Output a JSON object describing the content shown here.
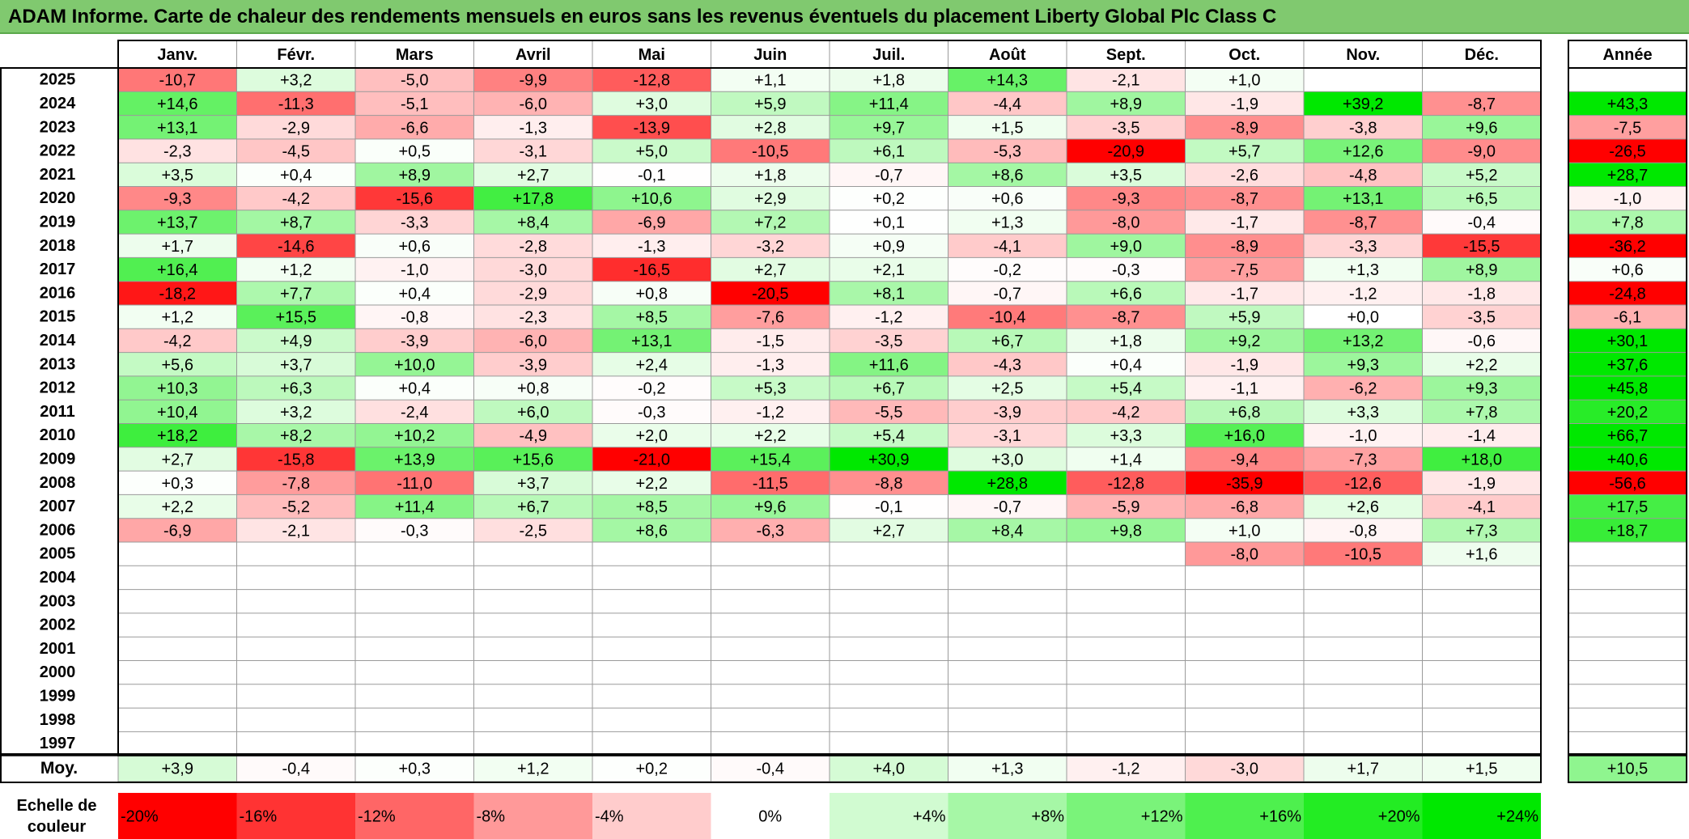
{
  "title": "ADAM Informe. Carte de chaleur des rendements mensuels en euros sans les revenus éventuels du placement Liberty Global Plc Class C",
  "chart_data": {
    "type": "heatmap",
    "months": [
      "Janv.",
      "Févr.",
      "Mars",
      "Avril",
      "Mai",
      "Juin",
      "Juil.",
      "Août",
      "Sept.",
      "Oct.",
      "Nov.",
      "Déc."
    ],
    "year_column_label": "Année",
    "rows": [
      {
        "year": "2025",
        "values": [
          -10.7,
          3.2,
          -5.0,
          -9.9,
          -12.8,
          1.1,
          1.8,
          14.3,
          -2.1,
          1.0,
          null,
          null
        ],
        "annual": null
      },
      {
        "year": "2024",
        "values": [
          14.6,
          -11.3,
          -5.1,
          -6.0,
          3.0,
          5.9,
          11.4,
          -4.4,
          8.9,
          -1.9,
          39.2,
          -8.7
        ],
        "annual": 43.3
      },
      {
        "year": "2023",
        "values": [
          13.1,
          -2.9,
          -6.6,
          -1.3,
          -13.9,
          2.8,
          9.7,
          1.5,
          -3.5,
          -8.9,
          -3.8,
          9.6
        ],
        "annual": -7.5
      },
      {
        "year": "2022",
        "values": [
          -2.3,
          -4.5,
          0.5,
          -3.1,
          5.0,
          -10.5,
          6.1,
          -5.3,
          -20.9,
          5.7,
          12.6,
          -9.0
        ],
        "annual": -26.5
      },
      {
        "year": "2021",
        "values": [
          3.5,
          0.4,
          8.9,
          2.7,
          -0.1,
          1.8,
          -0.7,
          8.6,
          3.5,
          -2.6,
          -4.8,
          5.2
        ],
        "annual": 28.7
      },
      {
        "year": "2020",
        "values": [
          -9.3,
          -4.2,
          -15.6,
          17.8,
          10.6,
          2.9,
          0.2,
          0.6,
          -9.3,
          -8.7,
          13.1,
          6.5
        ],
        "annual": -1.0
      },
      {
        "year": "2019",
        "values": [
          13.7,
          8.7,
          -3.3,
          8.4,
          -6.9,
          7.2,
          0.1,
          1.3,
          -8.0,
          -1.7,
          -8.7,
          -0.4
        ],
        "annual": 7.8
      },
      {
        "year": "2018",
        "values": [
          1.7,
          -14.6,
          0.6,
          -2.8,
          -1.3,
          -3.2,
          0.9,
          -4.1,
          9.0,
          -8.9,
          -3.3,
          -15.5
        ],
        "annual": -36.2
      },
      {
        "year": "2017",
        "values": [
          16.4,
          1.2,
          -1.0,
          -3.0,
          -16.5,
          2.7,
          2.1,
          -0.2,
          -0.3,
          -7.5,
          1.3,
          8.9
        ],
        "annual": 0.6
      },
      {
        "year": "2016",
        "values": [
          -18.2,
          7.7,
          0.4,
          -2.9,
          0.8,
          -20.5,
          8.1,
          -0.7,
          6.6,
          -1.7,
          -1.2,
          -1.8
        ],
        "annual": -24.8
      },
      {
        "year": "2015",
        "values": [
          1.2,
          15.5,
          -0.8,
          -2.3,
          8.5,
          -7.6,
          -1.2,
          -10.4,
          -8.7,
          5.9,
          0.0,
          -3.5
        ],
        "annual": -6.1
      },
      {
        "year": "2014",
        "values": [
          -4.2,
          4.9,
          -3.9,
          -6.0,
          13.1,
          -1.5,
          -3.5,
          6.7,
          1.8,
          9.2,
          13.2,
          -0.6
        ],
        "annual": 30.1
      },
      {
        "year": "2013",
        "values": [
          5.6,
          3.7,
          10.0,
          -3.9,
          2.4,
          -1.3,
          11.6,
          -4.3,
          0.4,
          -1.9,
          9.3,
          2.2
        ],
        "annual": 37.6
      },
      {
        "year": "2012",
        "values": [
          10.3,
          6.3,
          0.4,
          0.8,
          -0.2,
          5.3,
          6.7,
          2.5,
          5.4,
          -1.1,
          -6.2,
          9.3
        ],
        "annual": 45.8
      },
      {
        "year": "2011",
        "values": [
          10.4,
          3.2,
          -2.4,
          6.0,
          -0.3,
          -1.2,
          -5.5,
          -3.9,
          -4.2,
          6.8,
          3.3,
          7.8
        ],
        "annual": 20.2
      },
      {
        "year": "2010",
        "values": [
          18.2,
          8.2,
          10.2,
          -4.9,
          2.0,
          2.2,
          5.4,
          -3.1,
          3.3,
          16.0,
          -1.0,
          -1.4
        ],
        "annual": 66.7
      },
      {
        "year": "2009",
        "values": [
          2.7,
          -15.8,
          13.9,
          15.6,
          -21.0,
          15.4,
          30.9,
          3.0,
          1.4,
          -9.4,
          -7.3,
          18.0
        ],
        "annual": 40.6
      },
      {
        "year": "2008",
        "values": [
          0.3,
          -7.8,
          -11.0,
          3.7,
          2.2,
          -11.5,
          -8.8,
          28.8,
          -12.8,
          -35.9,
          -12.6,
          -1.9
        ],
        "annual": -56.6
      },
      {
        "year": "2007",
        "values": [
          2.2,
          -5.2,
          11.4,
          6.7,
          8.5,
          9.6,
          -0.1,
          -0.7,
          -5.9,
          -6.8,
          2.6,
          -4.1
        ],
        "annual": 17.5
      },
      {
        "year": "2006",
        "values": [
          -6.9,
          -2.1,
          -0.3,
          -2.5,
          8.6,
          -6.3,
          2.7,
          8.4,
          9.8,
          1.0,
          -0.8,
          7.3
        ],
        "annual": 18.7
      },
      {
        "year": "2005",
        "values": [
          null,
          null,
          null,
          null,
          null,
          null,
          null,
          null,
          null,
          -8.0,
          -10.5,
          1.6
        ],
        "annual": null
      },
      {
        "year": "2004",
        "values": [
          null,
          null,
          null,
          null,
          null,
          null,
          null,
          null,
          null,
          null,
          null,
          null
        ],
        "annual": null
      },
      {
        "year": "2003",
        "values": [
          null,
          null,
          null,
          null,
          null,
          null,
          null,
          null,
          null,
          null,
          null,
          null
        ],
        "annual": null
      },
      {
        "year": "2002",
        "values": [
          null,
          null,
          null,
          null,
          null,
          null,
          null,
          null,
          null,
          null,
          null,
          null
        ],
        "annual": null
      },
      {
        "year": "2001",
        "values": [
          null,
          null,
          null,
          null,
          null,
          null,
          null,
          null,
          null,
          null,
          null,
          null
        ],
        "annual": null
      },
      {
        "year": "2000",
        "values": [
          null,
          null,
          null,
          null,
          null,
          null,
          null,
          null,
          null,
          null,
          null,
          null
        ],
        "annual": null
      },
      {
        "year": "1999",
        "values": [
          null,
          null,
          null,
          null,
          null,
          null,
          null,
          null,
          null,
          null,
          null,
          null
        ],
        "annual": null
      },
      {
        "year": "1998",
        "values": [
          null,
          null,
          null,
          null,
          null,
          null,
          null,
          null,
          null,
          null,
          null,
          null
        ],
        "annual": null
      },
      {
        "year": "1997",
        "values": [
          null,
          null,
          null,
          null,
          null,
          null,
          null,
          null,
          null,
          null,
          null,
          null
        ],
        "annual": null
      }
    ],
    "average": {
      "label": "Moy.",
      "values": [
        3.9,
        -0.4,
        0.3,
        1.2,
        0.2,
        -0.4,
        4.0,
        1.3,
        -1.2,
        -3.0,
        1.7,
        1.5
      ],
      "annual": 10.5
    },
    "scale": {
      "label_line1": "Echelle de",
      "label_line2": "couleur",
      "items": [
        {
          "text": "-20%",
          "color": "#ff0000"
        },
        {
          "text": "-16%",
          "color": "#ff3333"
        },
        {
          "text": "-12%",
          "color": "#ff6666"
        },
        {
          "text": "-8%",
          "color": "#ff9999"
        },
        {
          "text": "-4%",
          "color": "#ffcccc"
        },
        {
          "text": "0%",
          "color": "#ffffff"
        },
        {
          "text": "+4%",
          "color": "#d1fbd1"
        },
        {
          "text": "+8%",
          "color": "#a6f7a6"
        },
        {
          "text": "+12%",
          "color": "#7af37a"
        },
        {
          "text": "+16%",
          "color": "#4ef04e"
        },
        {
          "text": "+20%",
          "color": "#23ec23"
        },
        {
          "text": "+24%",
          "color": "#00e800"
        }
      ]
    },
    "color_scale": {
      "negative": "#ff0000",
      "zero": "#ffffff",
      "positive": "#00e800",
      "negative_full_at": -20,
      "positive_full_at": 24
    }
  }
}
